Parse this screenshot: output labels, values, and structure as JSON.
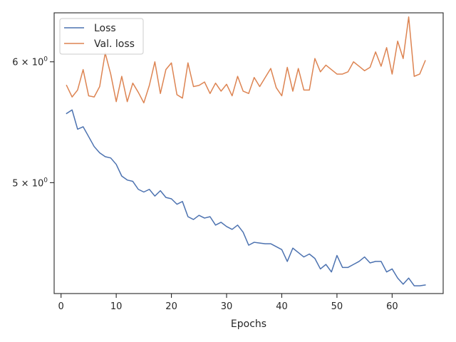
{
  "chart_data": {
    "type": "line",
    "title": "",
    "xlabel": "Epochs",
    "ylabel": "",
    "yscale": "log",
    "xlim": [
      -1.25,
      69.25
    ],
    "ylim": [
      4.23,
      6.46
    ],
    "grid": false,
    "legend_position": "top-left",
    "x_ticks": [
      0,
      10,
      20,
      30,
      40,
      50,
      60
    ],
    "x_tick_labels": [
      "0",
      "10",
      "20",
      "30",
      "40",
      "50",
      "60"
    ],
    "y_ticks": [
      5,
      6
    ],
    "y_tick_labels": [
      {
        "base": "5",
        "exp": "0"
      },
      {
        "base": "6",
        "exp": "0"
      }
    ],
    "x": [
      1,
      2,
      3,
      4,
      5,
      6,
      7,
      8,
      9,
      10,
      11,
      12,
      13,
      14,
      15,
      16,
      17,
      18,
      19,
      20,
      21,
      22,
      23,
      24,
      25,
      26,
      27,
      28,
      29,
      30,
      31,
      32,
      33,
      34,
      35,
      36,
      37,
      38,
      39,
      40,
      41,
      42,
      43,
      44,
      45,
      46,
      47,
      48,
      49,
      50,
      51,
      52,
      53,
      54,
      55,
      56,
      57,
      58,
      59,
      60,
      61,
      62,
      63,
      64,
      65,
      66
    ],
    "series": [
      {
        "name": "Loss",
        "color": "#4c72b0",
        "values": [
          5.55,
          5.58,
          5.42,
          5.44,
          5.36,
          5.28,
          5.23,
          5.2,
          5.19,
          5.14,
          5.05,
          5.02,
          5.01,
          4.95,
          4.93,
          4.95,
          4.9,
          4.94,
          4.89,
          4.88,
          4.84,
          4.86,
          4.75,
          4.73,
          4.76,
          4.74,
          4.75,
          4.69,
          4.71,
          4.68,
          4.66,
          4.69,
          4.64,
          4.55,
          4.57,
          4.565,
          4.56,
          4.56,
          4.54,
          4.52,
          4.44,
          4.53,
          4.5,
          4.47,
          4.49,
          4.46,
          4.39,
          4.42,
          4.37,
          4.48,
          4.4,
          4.4,
          4.42,
          4.44,
          4.47,
          4.43,
          4.44,
          4.44,
          4.37,
          4.39,
          4.33,
          4.29,
          4.33,
          4.28,
          4.28,
          4.285
        ]
      },
      {
        "name": "Val. loss",
        "color": "#dd8452",
        "values": [
          5.79,
          5.69,
          5.75,
          5.93,
          5.7,
          5.69,
          5.78,
          6.08,
          5.89,
          5.65,
          5.87,
          5.65,
          5.81,
          5.73,
          5.64,
          5.79,
          6.0,
          5.72,
          5.93,
          5.99,
          5.71,
          5.68,
          5.99,
          5.78,
          5.79,
          5.82,
          5.72,
          5.81,
          5.74,
          5.8,
          5.7,
          5.87,
          5.74,
          5.72,
          5.86,
          5.78,
          5.86,
          5.94,
          5.77,
          5.7,
          5.95,
          5.74,
          5.94,
          5.75,
          5.75,
          6.03,
          5.91,
          5.97,
          5.93,
          5.89,
          5.89,
          5.91,
          6.0,
          5.96,
          5.92,
          5.95,
          6.09,
          5.96,
          6.13,
          5.89,
          6.19,
          6.03,
          6.42,
          5.87,
          5.89,
          6.01
        ]
      }
    ]
  }
}
